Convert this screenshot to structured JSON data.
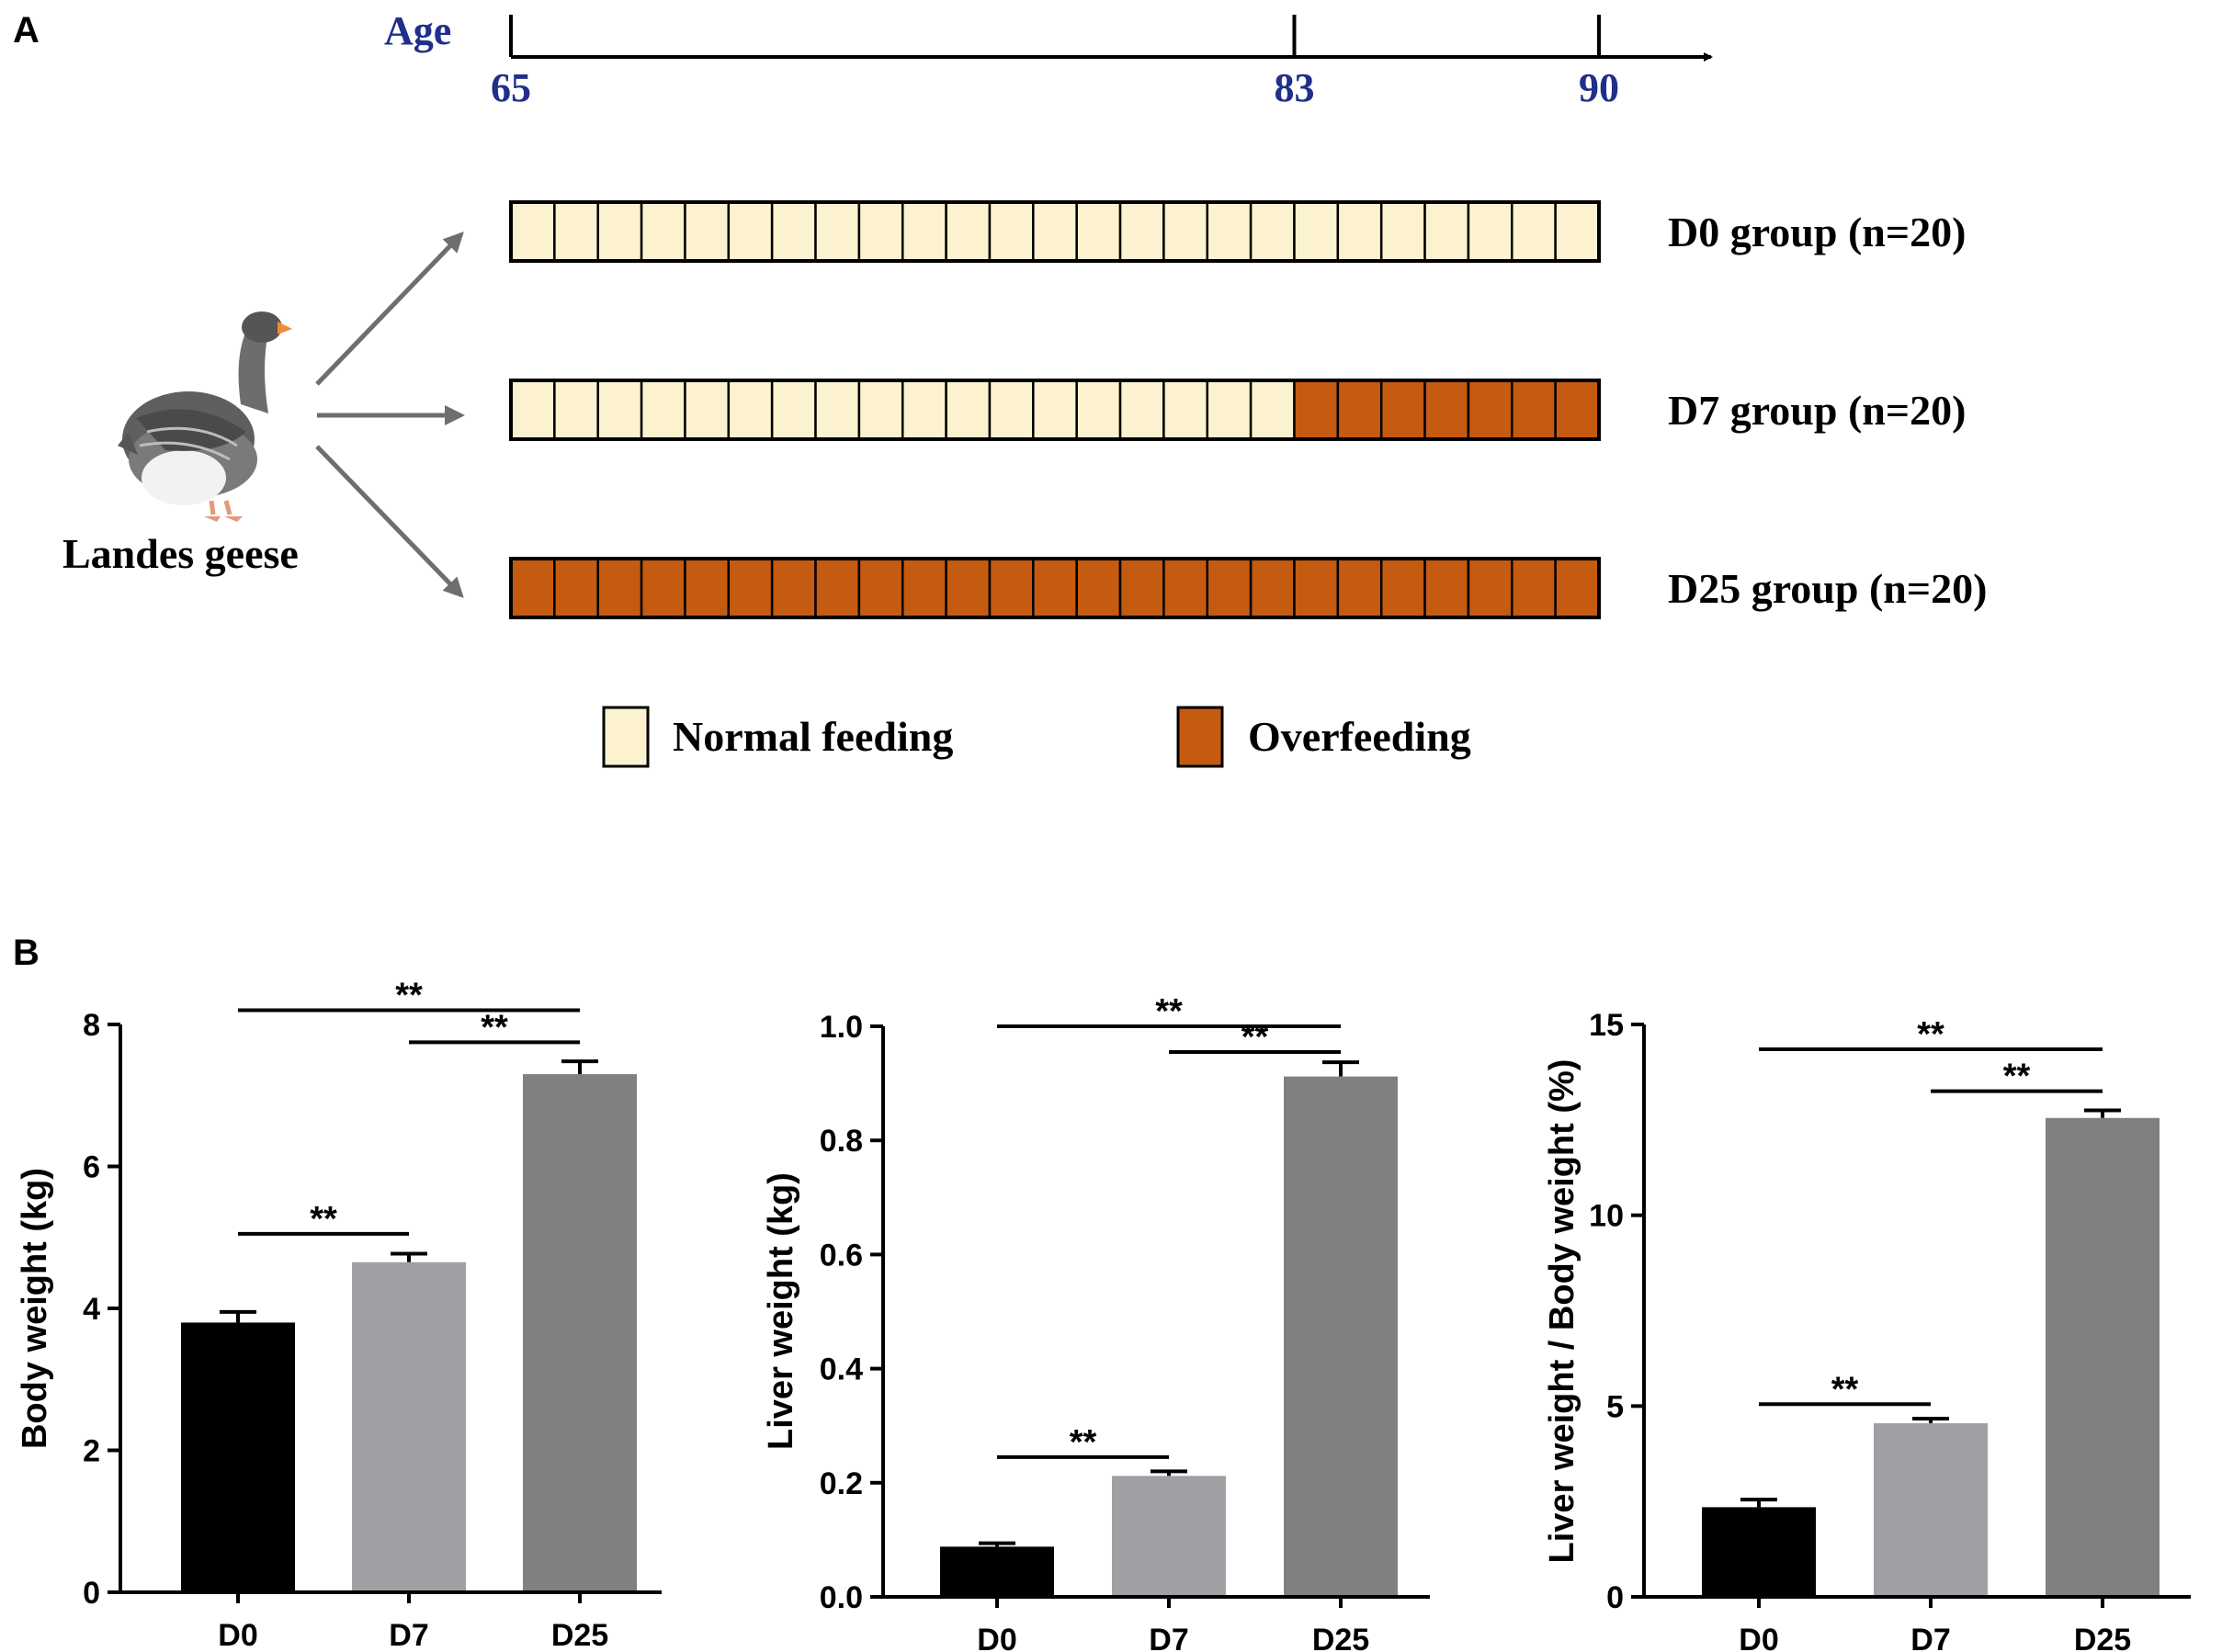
{
  "panel_a": {
    "label": "A",
    "age_title": "Age",
    "timeline_ticks": [
      65,
      83,
      90
    ],
    "total_days": 25,
    "groups": [
      {
        "name": "D0 group (n=20)",
        "overfeed_days": 0
      },
      {
        "name": "D7 group (n=20)",
        "overfeed_days": 7
      },
      {
        "name": "D25 group (n=20)",
        "overfeed_days": 25
      }
    ],
    "source_label": "Landes geese",
    "legend": [
      {
        "label": "Normal feeding",
        "color": "#fdf2cf"
      },
      {
        "label": "Overfeeding",
        "color": "#c55a11"
      }
    ],
    "colors": {
      "normal": "#fdf2cf",
      "over": "#c55a11",
      "tick_label": "#1f2f8a",
      "arrow": "#6e6e6e"
    }
  },
  "panel_b": {
    "label": "B",
    "colors": [
      "#000000",
      "#a0a0a4",
      "#808080"
    ]
  },
  "chart_data": [
    {
      "type": "bar",
      "title": "",
      "xlabel": "",
      "ylabel": "Body weight (kg)",
      "categories": [
        "D0",
        "D7",
        "D25"
      ],
      "values": [
        3.8,
        4.65,
        7.3
      ],
      "errors": [
        0.15,
        0.12,
        0.18
      ],
      "ylim": [
        0,
        8
      ],
      "yticks": [
        0,
        2,
        4,
        6,
        8
      ],
      "ytick_labels": [
        "0",
        "2",
        "4",
        "6",
        "8"
      ],
      "significance": [
        {
          "from": 0,
          "to": 2,
          "label": "**",
          "y": 8.2
        },
        {
          "from": 1,
          "to": 2,
          "label": "**",
          "y": 7.75
        },
        {
          "from": 0,
          "to": 1,
          "label": "**",
          "y": 5.05
        }
      ]
    },
    {
      "type": "bar",
      "title": "",
      "xlabel": "",
      "ylabel": "Liver weight (kg)",
      "categories": [
        "D0",
        "D7",
        "D25"
      ],
      "values": [
        0.088,
        0.212,
        0.912
      ],
      "errors": [
        0.006,
        0.008,
        0.025
      ],
      "ylim": [
        0,
        1.0
      ],
      "yticks": [
        0,
        0.2,
        0.4,
        0.6,
        0.8,
        1.0
      ],
      "ytick_labels": [
        "0.0",
        "0.2",
        "0.4",
        "0.6",
        "0.8",
        "1.0"
      ],
      "significance": [
        {
          "from": 0,
          "to": 2,
          "label": "**",
          "y": 1.0
        },
        {
          "from": 1,
          "to": 2,
          "label": "**",
          "y": 0.955
        },
        {
          "from": 0,
          "to": 1,
          "label": "**",
          "y": 0.245
        }
      ]
    },
    {
      "type": "bar",
      "title": "",
      "xlabel": "",
      "ylabel": "Liver weight / Body weight (%)",
      "categories": [
        "D0",
        "D7",
        "D25"
      ],
      "values": [
        2.35,
        4.55,
        12.55
      ],
      "errors": [
        0.2,
        0.12,
        0.2
      ],
      "ylim": [
        0,
        15
      ],
      "yticks": [
        0,
        5,
        10,
        15
      ],
      "ytick_labels": [
        "0",
        "5",
        "10",
        "15"
      ],
      "significance": [
        {
          "from": 0,
          "to": 2,
          "label": "**",
          "y": 14.35
        },
        {
          "from": 1,
          "to": 2,
          "label": "**",
          "y": 13.25
        },
        {
          "from": 0,
          "to": 1,
          "label": "**",
          "y": 5.05
        }
      ]
    }
  ]
}
